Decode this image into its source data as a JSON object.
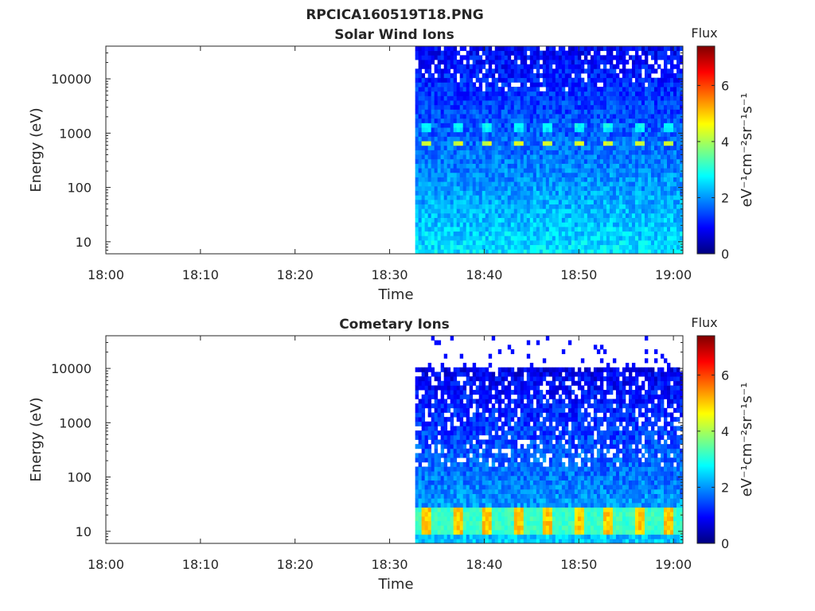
{
  "figure_title": "RPCICA160519T18.PNG",
  "colors": {
    "jet": [
      "#00007f",
      "#0000ff",
      "#007fff",
      "#00ffff",
      "#7fff7f",
      "#ffff00",
      "#ff7f00",
      "#ff0000",
      "#7f0000"
    ]
  },
  "chart_data": [
    {
      "type": "heatmap",
      "title": "Solar Wind Ions",
      "xlabel": "Time",
      "ylabel": "Energy (eV)",
      "x_ticks": [
        "18:00",
        "18:10",
        "18:20",
        "18:30",
        "18:40",
        "18:50",
        "19:00"
      ],
      "x_range_minutes": [
        0,
        61
      ],
      "data_start_minute": 32.7,
      "y_scale": "log",
      "y_ticks": [
        10,
        100,
        1000,
        10000
      ],
      "y_tick_labels": [
        "10",
        "100",
        "1000",
        "10000"
      ],
      "y_range": [
        6,
        40000
      ],
      "colorbar": {
        "title": "Flux",
        "label": "eV⁻¹cm⁻²sr⁻¹s⁻¹",
        "range": [
          0,
          7.4
        ],
        "ticks": [
          "0",
          "2",
          "4",
          "6"
        ],
        "tick_values": [
          0,
          2,
          4,
          6
        ]
      },
      "features": {
        "background_flux_high_energy": 0.9,
        "background_flux_low_energy": 2.6,
        "peak_energies_eV": [
          650,
          1300
        ],
        "peak_flux": [
          4.3,
          3.2
        ],
        "pulse_period_minutes": 3.2
      }
    },
    {
      "type": "heatmap",
      "title": "Cometary Ions",
      "xlabel": "Time",
      "ylabel": "Energy (eV)",
      "x_ticks": [
        "18:00",
        "18:10",
        "18:20",
        "18:30",
        "18:40",
        "18:50",
        "19:00"
      ],
      "x_range_minutes": [
        0,
        61
      ],
      "data_start_minute": 32.7,
      "y_scale": "log",
      "y_ticks": [
        10,
        100,
        1000,
        10000
      ],
      "y_tick_labels": [
        "10",
        "100",
        "1000",
        "10000"
      ],
      "y_range": [
        6,
        40000
      ],
      "colorbar": {
        "title": "Flux",
        "label": "eV⁻¹cm⁻²sr⁻¹s⁻¹",
        "range": [
          0,
          7.4
        ],
        "ticks": [
          "0",
          "2",
          "4",
          "6"
        ],
        "tick_values": [
          0,
          2,
          4,
          6
        ]
      },
      "features": {
        "upper_energy_cutoff_eV": 11000,
        "background_flux_high_energy": 0.5,
        "peak_energy_range_eV": [
          8,
          30
        ],
        "peak_flux": 5.0,
        "pulse_period_minutes": 3.2
      }
    }
  ]
}
